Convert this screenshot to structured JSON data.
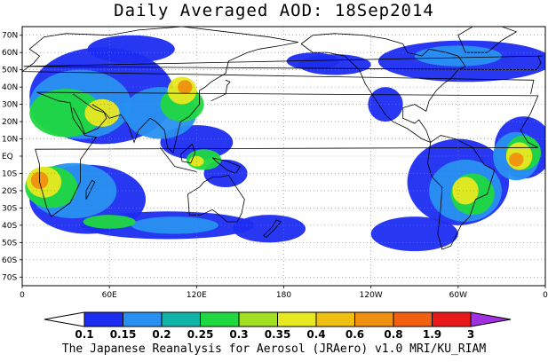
{
  "title": "Daily Averaged AOD: 18Sep2014",
  "credit": "The Japanese Reanalysis for Aerosol (JRAero) v1.0 MRI/KU_RIAM",
  "lat_labels": [
    "70N",
    "60N",
    "50N",
    "40N",
    "30N",
    "20N",
    "10N",
    "EQ",
    "10S",
    "20S",
    "30S",
    "40S",
    "50S",
    "60S",
    "70S"
  ],
  "lon_labels": [
    "0",
    "60E",
    "120E",
    "180",
    "120W",
    "60W",
    "0"
  ],
  "colorbar": {
    "labels": [
      "0.1",
      "0.15",
      "0.2",
      "0.25",
      "0.3",
      "0.35",
      "0.4",
      "0.6",
      "0.8",
      "1.9",
      "3"
    ],
    "colors": [
      "#ffffff",
      "#1c2cf0",
      "#2890f0",
      "#10b4a8",
      "#20d840",
      "#a0e020",
      "#e8e820",
      "#f0c010",
      "#f09010",
      "#f06010",
      "#e81818",
      "#a030e0"
    ]
  }
}
